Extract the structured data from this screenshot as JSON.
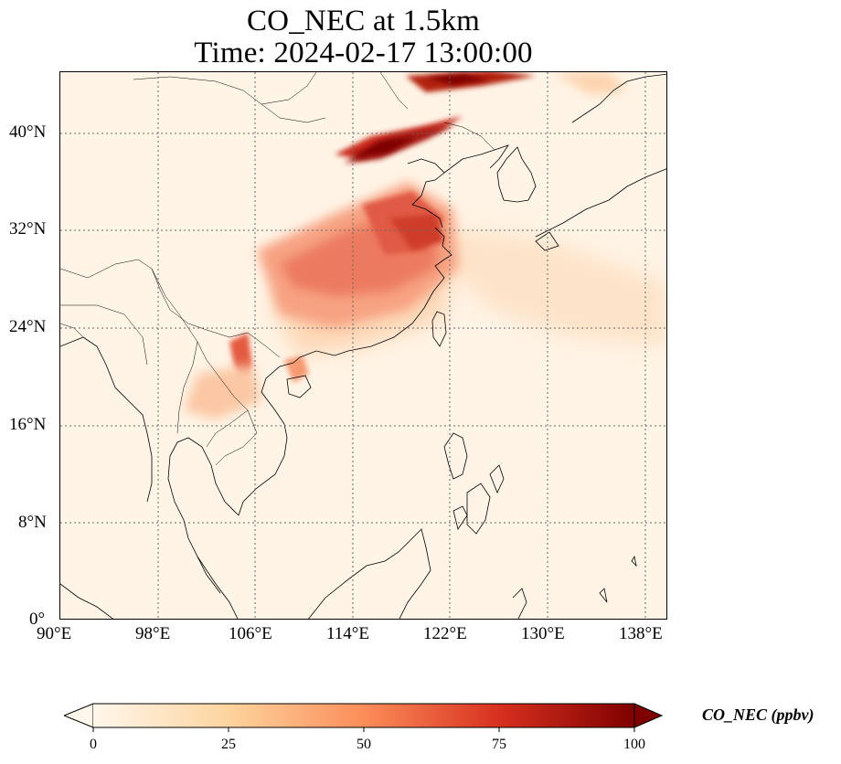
{
  "title": {
    "line1": "CO_NEC at 1.5km",
    "line2": "Time: 2024-02-17 13:00:00"
  },
  "map": {
    "projection": "plate-carree",
    "lon_range": [
      90,
      139
    ],
    "lat_range": [
      0,
      45
    ],
    "gridlines": "dotted",
    "colormap": "OrRd",
    "lon_ticks": [
      {
        "value": 90,
        "label": "90°E"
      },
      {
        "value": 98,
        "label": "98°E"
      },
      {
        "value": 106,
        "label": "106°E"
      },
      {
        "value": 114,
        "label": "114°E"
      },
      {
        "value": 122,
        "label": "122°E"
      },
      {
        "value": 130,
        "label": "130°E"
      },
      {
        "value": 138,
        "label": "138°E"
      }
    ],
    "lat_ticks": [
      {
        "value": 0,
        "label": "0°"
      },
      {
        "value": 8,
        "label": "8°N"
      },
      {
        "value": 16,
        "label": "16°N"
      },
      {
        "value": 24,
        "label": "24°N"
      },
      {
        "value": 32,
        "label": "32°N"
      },
      {
        "value": 40,
        "label": "40°N"
      }
    ]
  },
  "colorbar": {
    "min": 0,
    "max": 100,
    "extend": "both",
    "ticks": [
      "0",
      "25",
      "50",
      "75",
      "100"
    ],
    "label": "CO_NEC (ppbv)",
    "colors": [
      "#fff7ec",
      "#fdd49e",
      "#fc8d59",
      "#d7301f",
      "#7f0000"
    ]
  }
}
